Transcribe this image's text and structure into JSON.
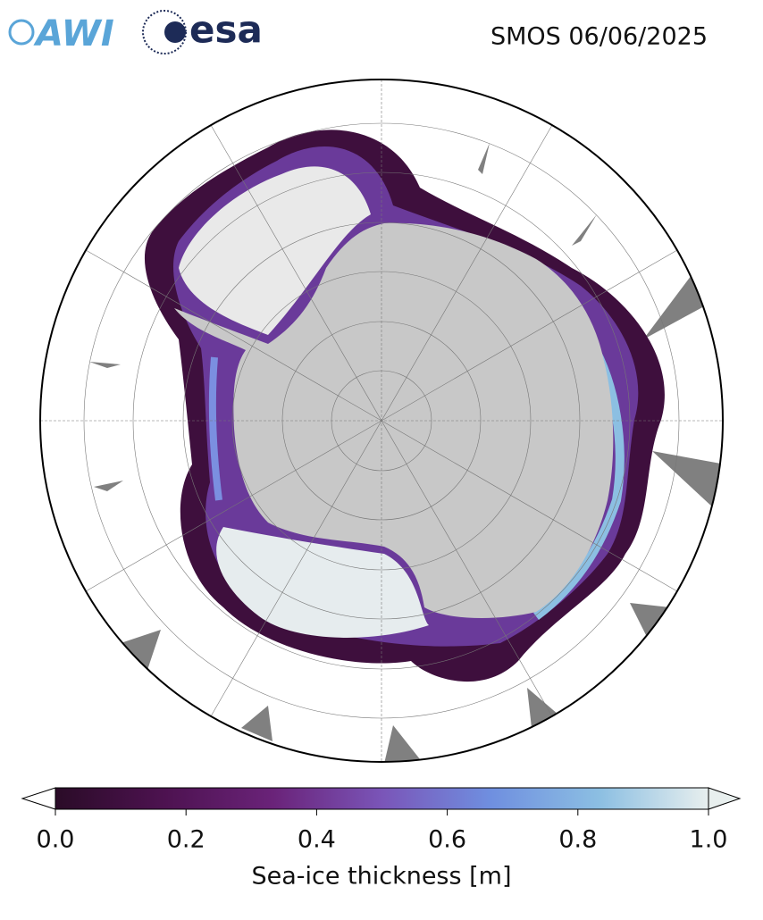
{
  "logos": {
    "awi": "AWI",
    "esa": "esa"
  },
  "title": "SMOS 06/06/2025",
  "colorbar": {
    "label": "Sea-ice thickness [m]",
    "lim": [
      0,
      1
    ],
    "ticks": [
      {
        "value": 0,
        "label": "0.0"
      },
      {
        "value": 0.2,
        "label": "0.2"
      },
      {
        "value": 0.4,
        "label": "0.4"
      },
      {
        "value": 0.6,
        "label": "0.6"
      },
      {
        "value": 0.8,
        "label": "0.8"
      },
      {
        "value": 1,
        "label": "1.0"
      }
    ],
    "colormap": [
      "#2a0b27",
      "#4d1250",
      "#6a2379",
      "#7a55b8",
      "#6f8fe0",
      "#8cbfe2",
      "#e8efee"
    ]
  }
}
